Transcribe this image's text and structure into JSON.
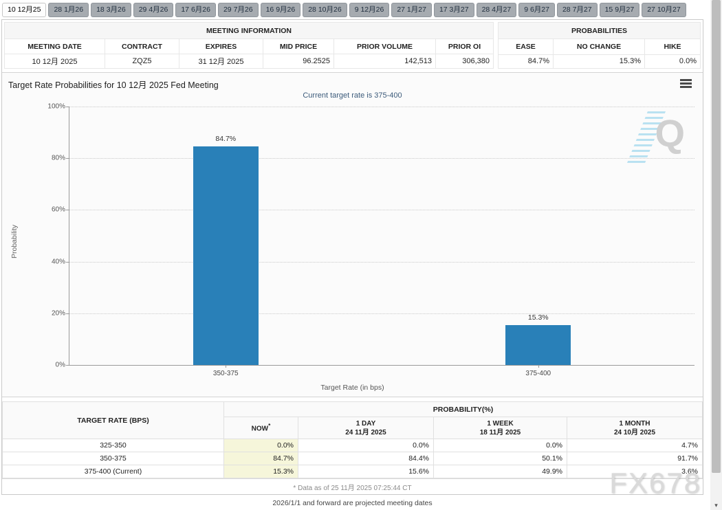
{
  "tabs": {
    "items": [
      {
        "label": "10 12月25",
        "active": true
      },
      {
        "label": "28 1月26",
        "active": false
      },
      {
        "label": "18 3月26",
        "active": false
      },
      {
        "label": "29 4月26",
        "active": false
      },
      {
        "label": "17 6月26",
        "active": false
      },
      {
        "label": "29 7月26",
        "active": false
      },
      {
        "label": "16 9月26",
        "active": false
      },
      {
        "label": "28 10月26",
        "active": false
      },
      {
        "label": "9 12月26",
        "active": false
      },
      {
        "label": "27 1月27",
        "active": false
      },
      {
        "label": "17 3月27",
        "active": false
      },
      {
        "label": "28 4月27",
        "active": false
      },
      {
        "label": "9 6月27",
        "active": false
      },
      {
        "label": "28 7月27",
        "active": false
      },
      {
        "label": "15 9月27",
        "active": false
      },
      {
        "label": "27 10月27",
        "active": false
      }
    ]
  },
  "meeting_info": {
    "title": "MEETING INFORMATION",
    "columns": [
      "MEETING DATE",
      "CONTRACT",
      "EXPIRES",
      "MID PRICE",
      "PRIOR VOLUME",
      "PRIOR OI"
    ],
    "values": [
      "10 12月 2025",
      "ZQZ5",
      "31 12月 2025",
      "96.2525",
      "142,513",
      "306,380"
    ]
  },
  "probabilities": {
    "title": "PROBABILITIES",
    "columns": [
      "EASE",
      "NO CHANGE",
      "HIKE"
    ],
    "values": [
      "84.7%",
      "15.3%",
      "0.0%"
    ]
  },
  "chart_data": {
    "type": "bar",
    "title": "Target Rate Probabilities for 10 12月 2025 Fed Meeting",
    "subtitle": "Current target rate is 375-400",
    "categories": [
      "350-375",
      "375-400"
    ],
    "values": [
      84.7,
      15.3
    ],
    "labels": [
      "84.7%",
      "15.3%"
    ],
    "xlabel": "Target Rate (in bps)",
    "ylabel": "Probability",
    "ylim": [
      0,
      100
    ],
    "ytick_values": [
      0,
      20,
      40,
      60,
      80,
      100
    ],
    "ytick_labels": [
      "0%",
      "20%",
      "40%",
      "60%",
      "80%",
      "100%"
    ],
    "bar_color": "#2980b8",
    "grid": "dotted-horizontal",
    "legend": "none"
  },
  "rate_table": {
    "corner_header": "TARGET RATE (BPS)",
    "group_header": "PROBABILITY(%)",
    "now_header": "NOW",
    "now_asterisk": "*",
    "period_headers": [
      {
        "line1": "1 DAY",
        "line2": "24 11月 2025"
      },
      {
        "line1": "1 WEEK",
        "line2": "18 11月 2025"
      },
      {
        "line1": "1 MONTH",
        "line2": "24 10月 2025"
      }
    ],
    "rows": [
      {
        "rate": "325-350",
        "now": "0.0%",
        "day": "0.0%",
        "week": "0.0%",
        "month": "4.7%"
      },
      {
        "rate": "350-375",
        "now": "84.7%",
        "day": "84.4%",
        "week": "50.1%",
        "month": "91.7%"
      },
      {
        "rate": "375-400 (Current)",
        "now": "15.3%",
        "day": "15.6%",
        "week": "49.9%",
        "month": "3.6%"
      }
    ]
  },
  "footer": {
    "data_as_of": "* Data as of 25 11月 2025 07:25:44 CT",
    "projected_note": "2026/1/1 and forward are projected meeting dates"
  },
  "watermarks": {
    "fx678": "FX678",
    "q_logo": "Q"
  }
}
